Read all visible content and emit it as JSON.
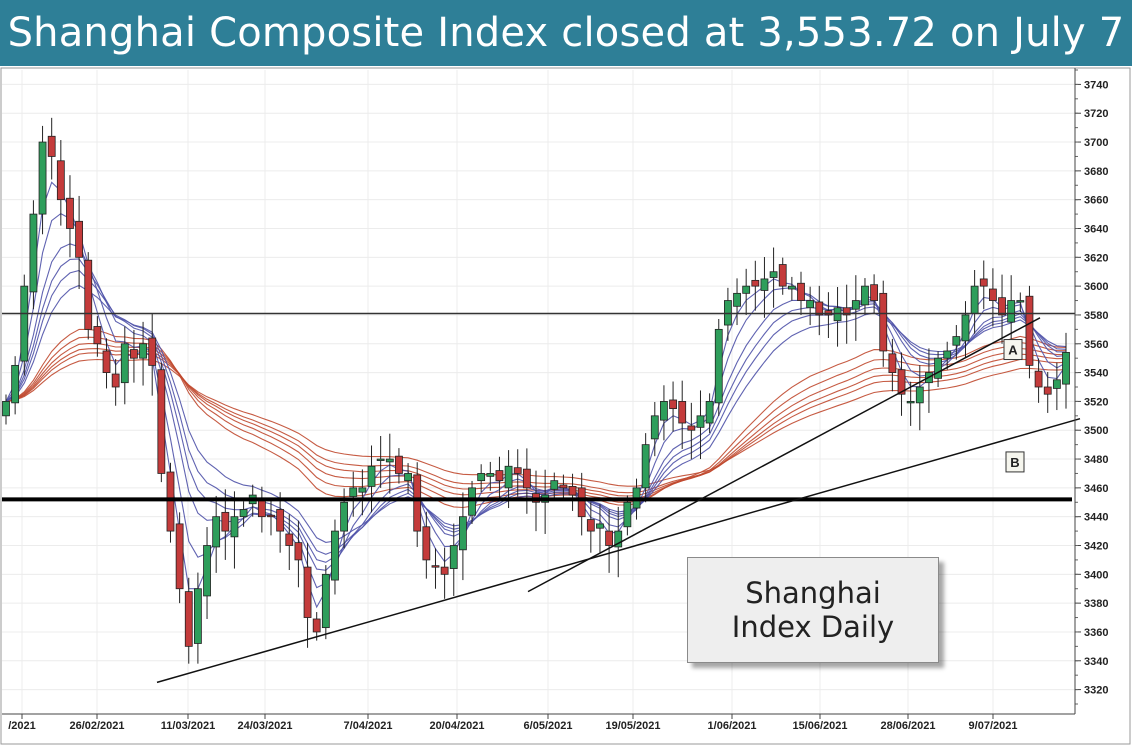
{
  "header": {
    "title": "Shanghai Composite Index closed at 3,553.72 on July 7"
  },
  "chart_box": {
    "line1": "Shanghai",
    "line2": "Index Daily"
  },
  "chart_data": {
    "type": "candlestick",
    "title": "Shanghai Composite Index closed at 3,553.72 on July 7",
    "ylim": [
      3310,
      3750
    ],
    "y_ticks": [
      3320,
      3340,
      3360,
      3380,
      3400,
      3420,
      3440,
      3460,
      3480,
      3500,
      3520,
      3540,
      3560,
      3580,
      3600,
      3620,
      3640,
      3660,
      3680,
      3700,
      3720,
      3740
    ],
    "x_tick_labels": [
      "/2021",
      "26/02/2021",
      "11/03/2021",
      "24/03/2021",
      "7/04/2021",
      "20/04/2021",
      "6/05/2021",
      "19/05/2021",
      "1/06/2021",
      "15/06/2021",
      "28/06/2021",
      "9/07/2021"
    ],
    "closes": [
      3520,
      3545,
      3600,
      3650,
      3700,
      3690,
      3660,
      3640,
      3620,
      3570,
      3560,
      3540,
      3530,
      3560,
      3550,
      3560,
      3545,
      3470,
      3430,
      3390,
      3350,
      3390,
      3420,
      3440,
      3430,
      3440,
      3445,
      3455,
      3440,
      3440,
      3430,
      3420,
      3410,
      3370,
      3360,
      3400,
      3430,
      3450,
      3460,
      3460,
      3475,
      3480,
      3480,
      3470,
      3470,
      3430,
      3410,
      3405,
      3400,
      3420,
      3440,
      3460,
      3470,
      3470,
      3465,
      3475,
      3470,
      3460,
      3450,
      3455,
      3465,
      3460,
      3455,
      3440,
      3430,
      3435,
      3420,
      3430,
      3450,
      3460,
      3490,
      3510,
      3520,
      3515,
      3505,
      3500,
      3510,
      3520,
      3570,
      3590,
      3595,
      3600,
      3600,
      3605,
      3610,
      3600,
      3600,
      3590,
      3590,
      3580,
      3580,
      3585,
      3580,
      3590,
      3600,
      3590,
      3555,
      3540,
      3525,
      3520,
      3530,
      3540,
      3550,
      3555,
      3565,
      3580,
      3600,
      3600,
      3590,
      3580,
      3590,
      3590,
      3545,
      3530,
      3525,
      3535,
      3554
    ],
    "annotations": [
      "A",
      "B"
    ],
    "horizontal_lines": [
      3581,
      3452
    ],
    "trend_lines": [
      {
        "from": [
          "11/03/2021",
          3325
        ],
        "to": [
          "9/07/2021",
          3508
        ]
      },
      {
        "from": [
          "6/05/2021",
          3388
        ],
        "to": [
          "9/07/2021",
          3578
        ]
      }
    ],
    "series_colors": {
      "bull": "#2e9e5b",
      "bear": "#c43b3b",
      "short_ma": "#4f52a8",
      "long_ma": "#c0492f"
    },
    "grid": true
  }
}
